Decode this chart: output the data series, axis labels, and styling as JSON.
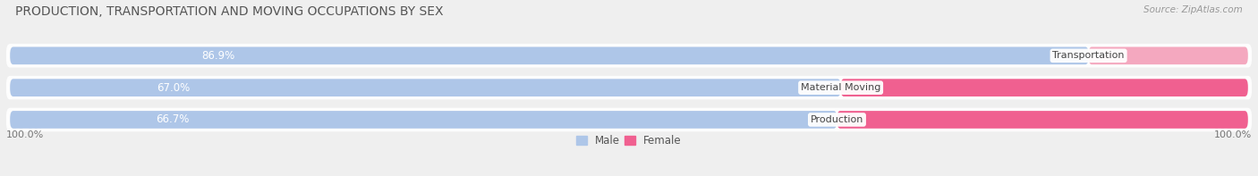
{
  "title": "PRODUCTION, TRANSPORTATION AND MOVING OCCUPATIONS BY SEX",
  "source": "Source: ZipAtlas.com",
  "categories": [
    "Transportation",
    "Material Moving",
    "Production"
  ],
  "male_values": [
    86.9,
    67.0,
    66.7
  ],
  "female_values": [
    13.1,
    33.0,
    33.3
  ],
  "male_color_top": "#aec6e8",
  "male_color_mid": "#aec6e8",
  "male_color_bot": "#aec6e8",
  "female_color_top": "#f4a8bf",
  "female_color_mid": "#f06090",
  "female_color_bot": "#f06090",
  "male_label_color": "#ffffff",
  "female_label_color": "#555555",
  "category_label_color": "#444444",
  "bg_color": "#efefef",
  "row_bg_color": "#e2e2e2",
  "title_color": "#555555",
  "source_color": "#999999",
  "axis_label_color": "#777777",
  "title_fontsize": 10,
  "source_fontsize": 7.5,
  "bar_label_fontsize": 8.5,
  "category_fontsize": 8,
  "legend_fontsize": 8.5,
  "x_left_label": "100.0%",
  "x_right_label": "100.0%",
  "figsize": [
    14.06,
    1.97
  ],
  "dpi": 100
}
